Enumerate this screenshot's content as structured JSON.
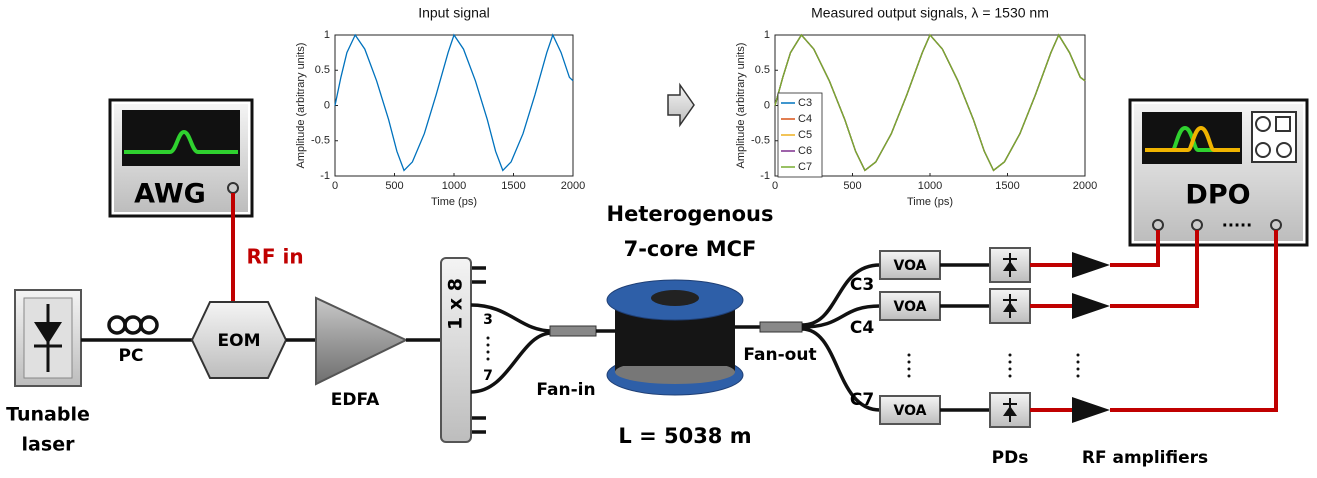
{
  "input_plot": {
    "title": "Input signal",
    "x_label": "Time (ps)",
    "y_label": "Amplitude (arbitrary units)",
    "x": [
      0,
      50,
      100,
      170,
      250,
      350,
      450,
      520,
      580,
      650,
      750,
      850,
      950,
      1000,
      1080,
      1180,
      1280,
      1350,
      1410,
      1480,
      1580,
      1680,
      1780,
      1830,
      1900,
      1970,
      2000
    ],
    "values": [
      0,
      0.4,
      0.75,
      1,
      0.8,
      0.35,
      -0.2,
      -0.65,
      -0.92,
      -0.8,
      -0.4,
      0.15,
      0.75,
      1,
      0.8,
      0.35,
      -0.2,
      -0.65,
      -0.92,
      -0.8,
      -0.4,
      0.15,
      0.75,
      1,
      0.75,
      0.4,
      0.35
    ],
    "color": "#0072bd",
    "xlim": [
      0,
      2000
    ],
    "ylim": [
      -1,
      1
    ],
    "xticks": [
      0,
      500,
      1000,
      1500,
      2000
    ],
    "yticks": [
      -1,
      -0.5,
      0,
      0.5,
      1
    ]
  },
  "output_plot": {
    "title": "Measured output signals, λ = 1530 nm",
    "x_label": "Time (ps)",
    "y_label": "Amplitude (arbitrary units)",
    "x": [
      0,
      50,
      100,
      170,
      250,
      350,
      450,
      520,
      580,
      650,
      750,
      850,
      950,
      1000,
      1080,
      1180,
      1280,
      1350,
      1410,
      1480,
      1580,
      1680,
      1780,
      1830,
      1900,
      1970,
      2000
    ],
    "series": [
      {
        "name": "C3",
        "color": "#0072bd",
        "values": [
          0,
          0.4,
          0.75,
          1,
          0.8,
          0.35,
          -0.2,
          -0.65,
          -0.92,
          -0.8,
          -0.4,
          0.15,
          0.75,
          1,
          0.8,
          0.35,
          -0.2,
          -0.65,
          -0.92,
          -0.8,
          -0.4,
          0.15,
          0.75,
          1,
          0.75,
          0.4,
          0.35
        ]
      },
      {
        "name": "C4",
        "color": "#d95319",
        "values": [
          0,
          0.4,
          0.75,
          1,
          0.8,
          0.35,
          -0.2,
          -0.65,
          -0.92,
          -0.8,
          -0.4,
          0.15,
          0.75,
          1,
          0.8,
          0.35,
          -0.2,
          -0.65,
          -0.92,
          -0.8,
          -0.4,
          0.15,
          0.75,
          1,
          0.75,
          0.4,
          0.35
        ]
      },
      {
        "name": "C5",
        "color": "#edb120",
        "values": [
          0,
          0.4,
          0.75,
          1,
          0.8,
          0.35,
          -0.2,
          -0.65,
          -0.92,
          -0.8,
          -0.4,
          0.15,
          0.75,
          1,
          0.8,
          0.35,
          -0.2,
          -0.65,
          -0.92,
          -0.8,
          -0.4,
          0.15,
          0.75,
          1,
          0.75,
          0.4,
          0.35
        ]
      },
      {
        "name": "C6",
        "color": "#7e2f8e",
        "values": [
          0,
          0.4,
          0.75,
          1,
          0.8,
          0.35,
          -0.2,
          -0.65,
          -0.92,
          -0.8,
          -0.4,
          0.15,
          0.75,
          1,
          0.8,
          0.35,
          -0.2,
          -0.65,
          -0.92,
          -0.8,
          -0.4,
          0.15,
          0.75,
          1,
          0.75,
          0.4,
          0.35
        ]
      },
      {
        "name": "C7",
        "color": "#77ac30",
        "values": [
          0,
          0.4,
          0.75,
          1,
          0.8,
          0.35,
          -0.2,
          -0.65,
          -0.92,
          -0.8,
          -0.4,
          0.15,
          0.75,
          1,
          0.8,
          0.35,
          -0.2,
          -0.65,
          -0.92,
          -0.8,
          -0.4,
          0.15,
          0.75,
          1,
          0.75,
          0.4,
          0.35
        ]
      }
    ],
    "xlim": [
      0,
      2000
    ],
    "ylim": [
      -1,
      1
    ],
    "xticks": [
      0,
      500,
      1000,
      1500,
      2000
    ],
    "yticks": [
      -1,
      -0.5,
      0,
      0.5,
      1
    ]
  },
  "labels": {
    "awg": "AWG",
    "rf_in": "RF in",
    "tunable": "Tunable",
    "laser": "laser",
    "pc": "PC",
    "eom": "EOM",
    "edfa": "EDFA",
    "splitter": "1 x 8",
    "port_3": "3",
    "port_7": "7",
    "fan_in": "Fan-in",
    "mcf_line1": "Heterogenous",
    "mcf_line2": "7-core MCF",
    "length": "L = 5038 m",
    "fan_out": "Fan-out",
    "c3": "C3",
    "c4": "C4",
    "c7": "C7",
    "voa": [
      "VOA",
      "VOA",
      "VOA"
    ],
    "dpo": "DPO",
    "dpo_dots": ".....",
    "pds": "PDs",
    "rf_amplifiers": "RF amplifiers"
  }
}
